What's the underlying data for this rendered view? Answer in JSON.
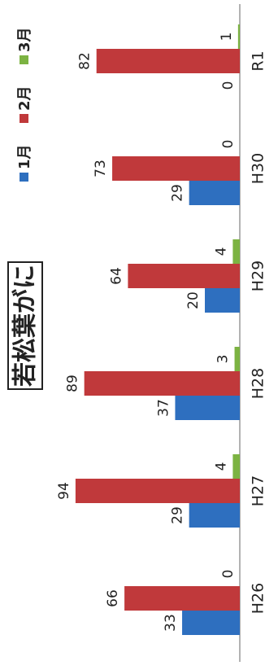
{
  "chart_data": {
    "type": "bar",
    "title": "若松葉がに",
    "categories": [
      "H26",
      "H27",
      "H28",
      "H29",
      "H30",
      "R1"
    ],
    "series": [
      {
        "name": "1月",
        "color": "#2e6fbf",
        "values": [
          33,
          29,
          37,
          20,
          29,
          0
        ]
      },
      {
        "name": "2月",
        "color": "#c0393b",
        "values": [
          66,
          94,
          89,
          64,
          73,
          82
        ]
      },
      {
        "name": "3月",
        "color": "#7cb342",
        "values": [
          0,
          4,
          3,
          4,
          0,
          1
        ]
      }
    ],
    "ylim": [
      0,
      100
    ],
    "legend": "top-right"
  }
}
